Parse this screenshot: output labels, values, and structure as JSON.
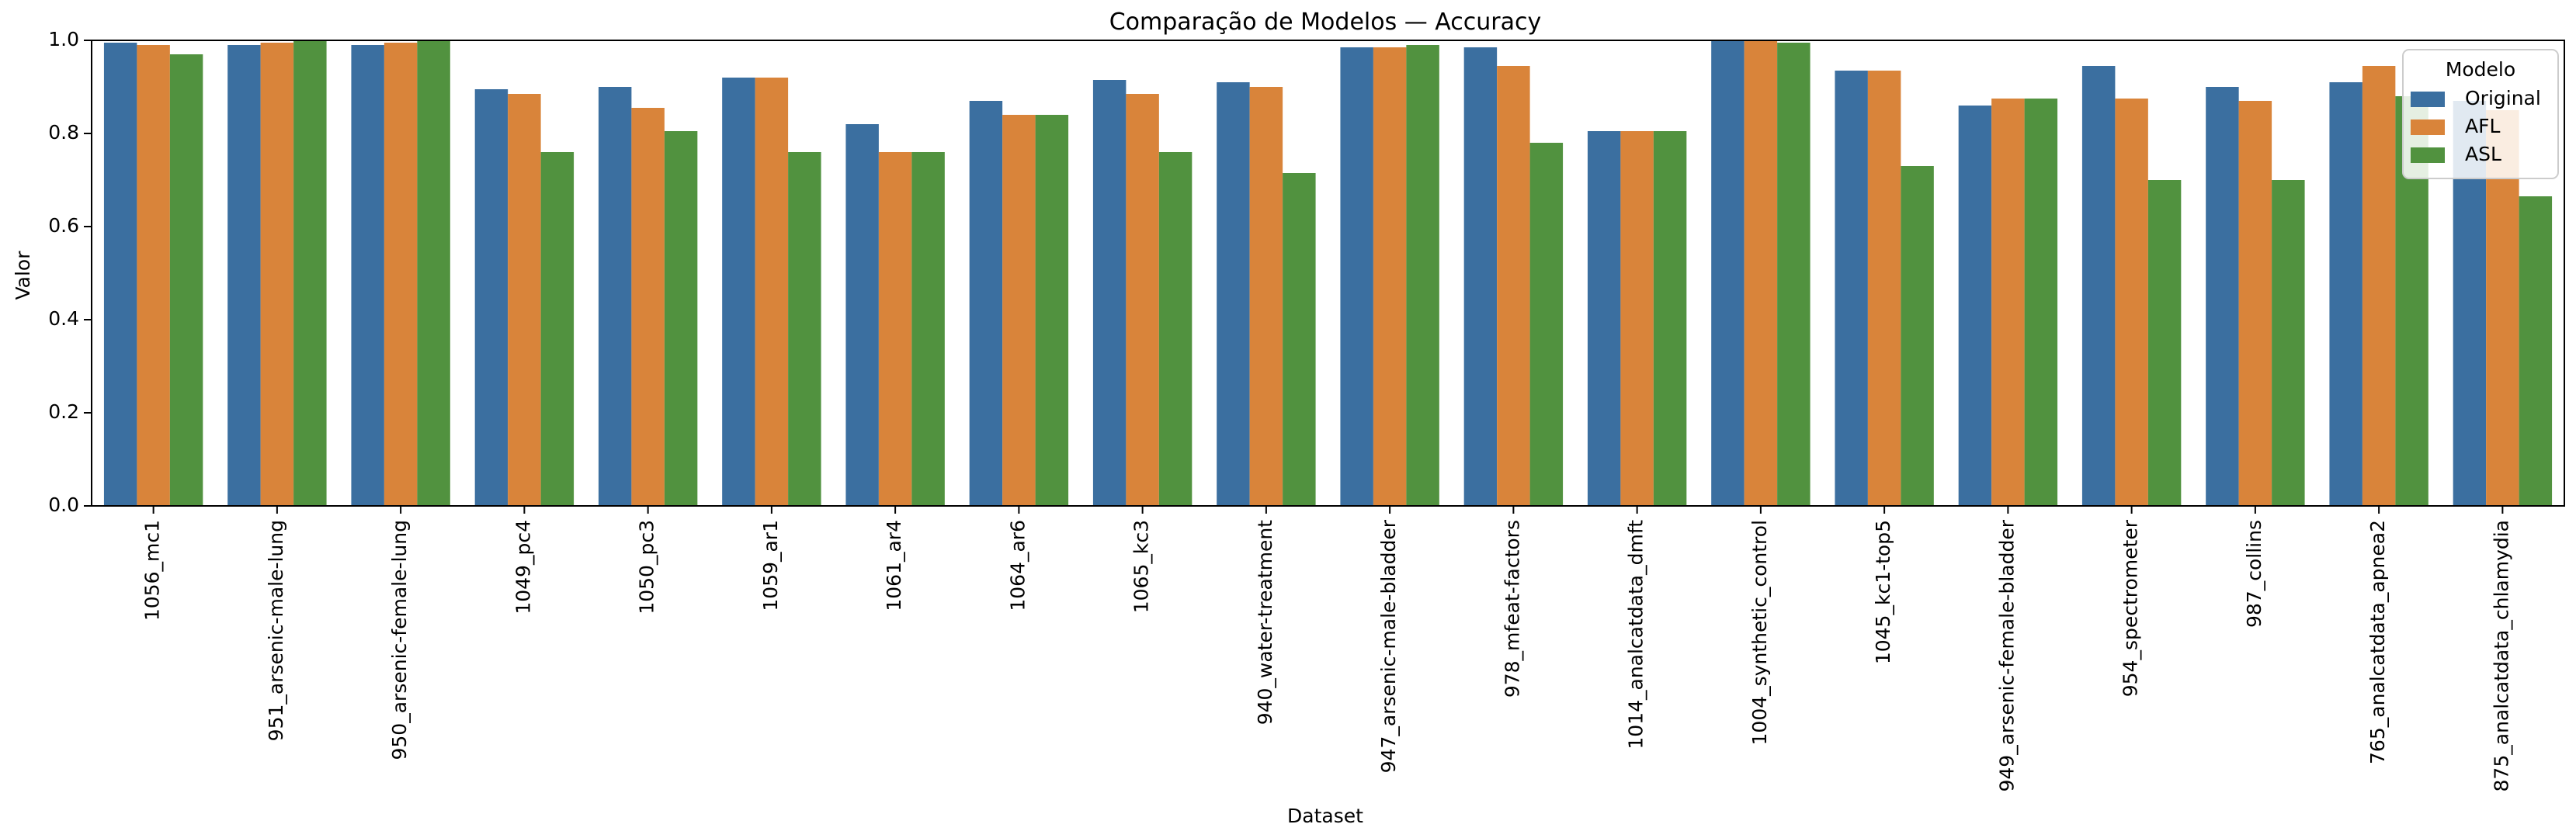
{
  "chart_data": {
    "type": "bar",
    "title": "Comparação de Modelos — Accuracy",
    "xlabel": "Dataset",
    "ylabel": "Valor",
    "ylim": [
      0,
      1.0
    ],
    "yticks": [
      "0.0",
      "0.2",
      "0.4",
      "0.6",
      "0.8",
      "1.0"
    ],
    "grid": false,
    "legend_title": "Modelo",
    "legend_position": "top-right",
    "categories": [
      "1056_mc1",
      "951_arsenic-male-lung",
      "950_arsenic-female-lung",
      "1049_pc4",
      "1050_pc3",
      "1059_ar1",
      "1061_ar4",
      "1064_ar6",
      "1065_kc3",
      "940_water-treatment",
      "947_arsenic-male-bladder",
      "978_mfeat-factors",
      "1014_analcatdata_dmft",
      "1004_synthetic_control",
      "1045_kc1-top5",
      "949_arsenic-female-bladder",
      "954_spectrometer",
      "987_collins",
      "765_analcatdata_apnea2",
      "875_analcatdata_chlamydia"
    ],
    "series": [
      {
        "name": "Original",
        "color": "#3b6fa0",
        "values": [
          0.995,
          0.99,
          0.99,
          0.895,
          0.9,
          0.92,
          0.82,
          0.87,
          0.915,
          0.91,
          0.985,
          0.985,
          0.805,
          1.0,
          0.935,
          0.86,
          0.945,
          0.9,
          0.91,
          0.87
        ]
      },
      {
        "name": "AFL",
        "color": "#d9843a",
        "values": [
          0.99,
          0.995,
          0.995,
          0.885,
          0.855,
          0.92,
          0.76,
          0.84,
          0.885,
          0.9,
          0.985,
          0.945,
          0.805,
          1.0,
          0.935,
          0.875,
          0.875,
          0.87,
          0.945,
          0.85
        ]
      },
      {
        "name": "ASL",
        "color": "#51923f",
        "values": [
          0.97,
          1.0,
          1.0,
          0.76,
          0.805,
          0.76,
          0.76,
          0.84,
          0.76,
          0.715,
          0.99,
          0.78,
          0.805,
          0.995,
          0.73,
          0.875,
          0.7,
          0.7,
          0.88,
          0.665
        ]
      }
    ]
  }
}
